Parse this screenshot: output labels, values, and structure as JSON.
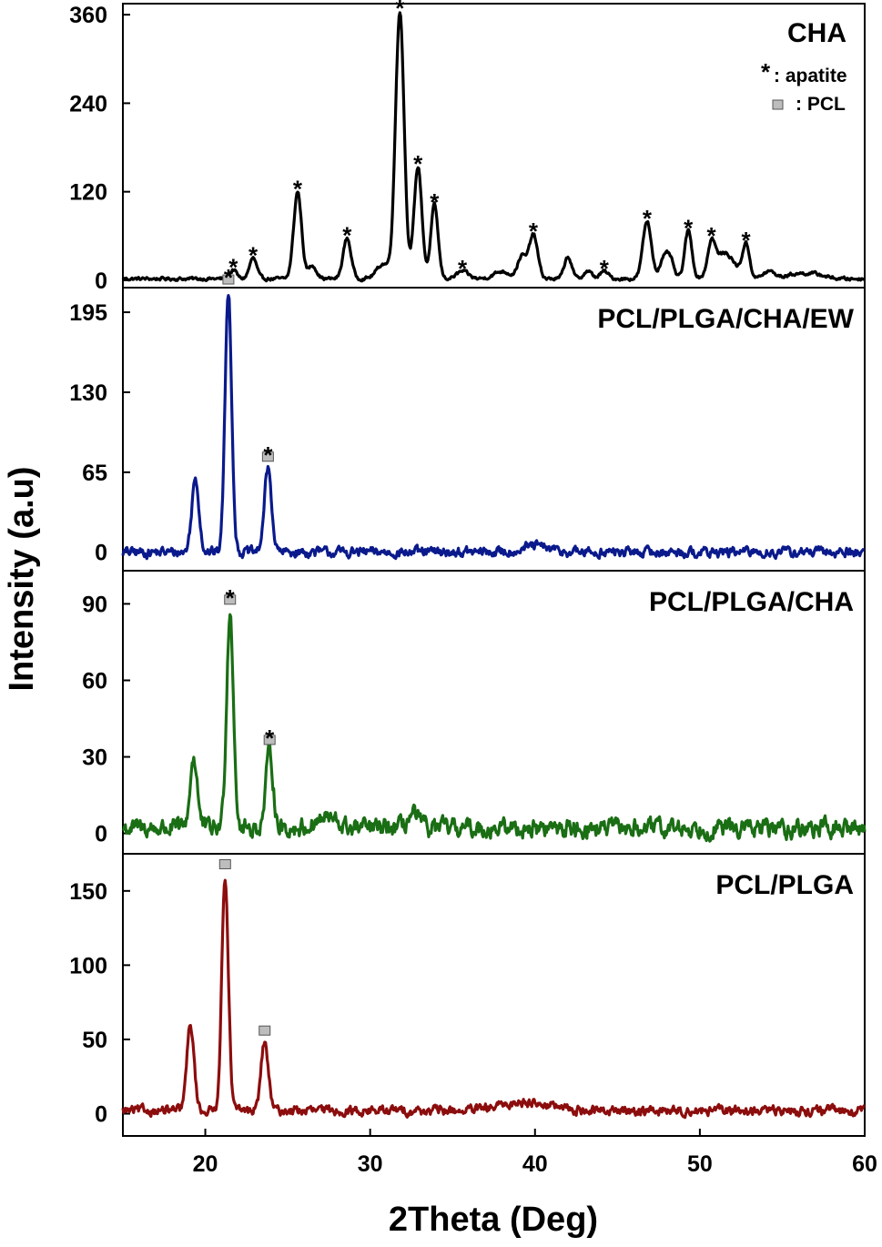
{
  "colors": {
    "panel_0": "#000000",
    "panel_1": "#0a1a8c",
    "panel_2": "#1a6e14",
    "panel_3": "#8c0d0d",
    "pcl_marker": "#bdbdbd"
  },
  "legend": {
    "apatite_symbol": "*",
    "apatite_label": ": apatite",
    "pcl_label": ": PCL"
  },
  "chart_data": {
    "type": "line",
    "xlabel": "2Theta (Deg)",
    "ylabel": "Intensity (a.u)",
    "xlim": [
      15,
      60
    ],
    "x_ticks": [
      20,
      30,
      40,
      50,
      60
    ],
    "panels": [
      {
        "name": "CHA",
        "ylim": [
          -10,
          375
        ],
        "y_ticks": [
          0,
          120,
          240,
          360
        ],
        "baseline": 2,
        "peaks": [
          [
            21.7,
            12,
            0.2
          ],
          [
            22.9,
            28,
            0.22
          ],
          [
            25.6,
            118,
            0.24
          ],
          [
            26.5,
            18,
            0.25
          ],
          [
            28.6,
            55,
            0.24
          ],
          [
            30.8,
            20,
            0.4
          ],
          [
            31.8,
            362,
            0.26
          ],
          [
            32.9,
            152,
            0.24
          ],
          [
            33.9,
            100,
            0.22
          ],
          [
            35.6,
            10,
            0.35
          ],
          [
            38.0,
            10,
            0.5
          ],
          [
            39.2,
            30,
            0.25
          ],
          [
            39.9,
            60,
            0.26
          ],
          [
            42.0,
            30,
            0.22
          ],
          [
            43.2,
            10,
            0.25
          ],
          [
            44.2,
            10,
            0.25
          ],
          [
            46.8,
            78,
            0.26
          ],
          [
            47.8,
            25,
            0.25
          ],
          [
            48.2,
            25,
            0.22
          ],
          [
            49.3,
            65,
            0.22
          ],
          [
            50.7,
            40,
            0.22
          ],
          [
            51.5,
            35,
            0.6
          ],
          [
            52.8,
            45,
            0.22
          ],
          [
            54.2,
            10,
            0.35
          ],
          [
            55.8,
            6,
            0.6
          ],
          [
            57.0,
            6,
            0.6
          ]
        ],
        "noise": 2.5,
        "markers": [
          {
            "x": 21.7,
            "star": true,
            "pcl": false
          },
          {
            "x": 22.9,
            "star": true,
            "pcl": false
          },
          {
            "x": 25.6,
            "star": true,
            "pcl": false
          },
          {
            "x": 28.6,
            "star": true,
            "pcl": false
          },
          {
            "x": 31.8,
            "star": true,
            "pcl": false
          },
          {
            "x": 32.9,
            "star": true,
            "pcl": false
          },
          {
            "x": 33.9,
            "star": true,
            "pcl": false
          },
          {
            "x": 35.6,
            "star": true,
            "pcl": false
          },
          {
            "x": 39.9,
            "star": true,
            "pcl": false
          },
          {
            "x": 44.2,
            "star": true,
            "pcl": false
          },
          {
            "x": 46.8,
            "star": true,
            "pcl": false
          },
          {
            "x": 49.3,
            "star": true,
            "pcl": false
          },
          {
            "x": 50.7,
            "star": true,
            "pcl": false
          },
          {
            "x": 52.8,
            "star": true,
            "pcl": false
          }
        ]
      },
      {
        "name": "PCL/PLGA/CHA/EW",
        "ylim": [
          -15,
          215
        ],
        "y_ticks": [
          0,
          65,
          130,
          195
        ],
        "baseline": 0,
        "peaks": [
          [
            19.4,
            60,
            0.22
          ],
          [
            21.4,
            212,
            0.2
          ],
          [
            23.8,
            68,
            0.22
          ],
          [
            40.0,
            5,
            0.8
          ]
        ],
        "noise": 4.5,
        "markers": [
          {
            "x": 21.4,
            "star": true,
            "pcl": true
          },
          {
            "x": 23.8,
            "star": true,
            "pcl": true
          }
        ]
      },
      {
        "name": "PCL/PLGA/CHA",
        "ylim": [
          -8,
          103
        ],
        "y_ticks": [
          0,
          30,
          60,
          90
        ],
        "baseline": 2,
        "peaks": [
          [
            19.3,
            28,
            0.22
          ],
          [
            21.5,
            85,
            0.21
          ],
          [
            23.9,
            30,
            0.22
          ],
          [
            27.3,
            4,
            0.6
          ],
          [
            32.6,
            5,
            0.35
          ]
        ],
        "noise": 4,
        "markers": [
          {
            "x": 21.5,
            "star": true,
            "pcl": true
          },
          {
            "x": 23.9,
            "star": true,
            "pcl": true
          }
        ]
      },
      {
        "name": "PCL/PLGA",
        "ylim": [
          -15,
          175
        ],
        "y_ticks": [
          0,
          50,
          100,
          150
        ],
        "baseline": 2,
        "peaks": [
          [
            19.1,
            57,
            0.22
          ],
          [
            21.2,
            158,
            0.2
          ],
          [
            23.6,
            46,
            0.22
          ],
          [
            39.5,
            6,
            1.4
          ]
        ],
        "noise": 3.5,
        "markers": [
          {
            "x": 21.2,
            "star": false,
            "pcl": true
          },
          {
            "x": 23.6,
            "star": false,
            "pcl": true
          }
        ]
      }
    ]
  }
}
